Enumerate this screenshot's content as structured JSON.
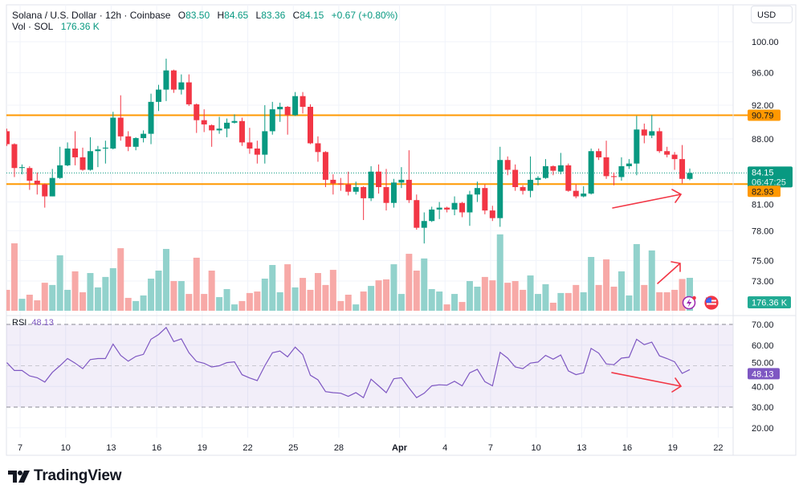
{
  "header": {
    "title": "Solana / U.S. Dollar · 12h · Coinbase",
    "o_label": "O",
    "o_value": "83.50",
    "h_label": "H",
    "h_value": "84.65",
    "l_label": "L",
    "l_value": "83.36",
    "c_label": "C",
    "c_value": "84.15",
    "change": "+0.67 (+0.80%)",
    "vol_label": "Vol · SOL",
    "vol_value": "176.36 K"
  },
  "currency_button": "USD",
  "colors": {
    "up": "#089981",
    "down": "#f23645",
    "volume_up": "#92d2cc",
    "volume_down": "#f7a9a7",
    "level_line": "#ff9800",
    "rsi_line": "#7e57c2",
    "annotation_arrow": "#f23645"
  },
  "price_axis": {
    "scale": "log",
    "ticks": [
      "100.00",
      "96.00",
      "92.00",
      "88.00",
      "81.00",
      "78.00",
      "75.00",
      "73.00"
    ],
    "level_labels": [
      "90.79",
      "82.93"
    ],
    "current_price": "84.15",
    "countdown": "06:47:25",
    "volume_label": "176.36 K"
  },
  "rsi_axis": {
    "ticks": [
      "70.00",
      "60.00",
      "50.00",
      "40.00",
      "30.00",
      "20.00"
    ],
    "current": "48.13"
  },
  "rsi_legend": {
    "label": "RSI",
    "value": "48.13"
  },
  "time_axis": {
    "ticks": [
      "7",
      "10",
      "13",
      "16",
      "19",
      "22",
      "25",
      "28",
      "Apr",
      "4",
      "7",
      "10",
      "13",
      "16",
      "19",
      "22"
    ]
  },
  "icons": [
    "lightning-icon",
    "us-flag-icon",
    "tradingview-logo-icon"
  ],
  "logo": "TradingView",
  "chart_data": [
    {
      "type": "candlestick",
      "title": "Solana / U.S. Dollar · 12h · Coinbase",
      "y_scale": "log",
      "ylim": [
        72,
        101
      ],
      "grid": true,
      "horizontal_levels": [
        90.79,
        82.93
      ],
      "last_price": 84.15,
      "ohlc": [
        [
          88.9,
          89.2,
          87.2,
          87.4
        ],
        [
          87.4,
          87.5,
          83.7,
          84.7
        ],
        [
          84.7,
          85.1,
          84.0,
          84.8
        ],
        [
          84.7,
          84.9,
          82.3,
          83.3
        ],
        [
          83.3,
          84.2,
          81.8,
          82.9
        ],
        [
          82.9,
          83.0,
          80.4,
          81.6
        ],
        [
          81.6,
          84.6,
          81.6,
          83.6
        ],
        [
          83.6,
          87.1,
          83.5,
          85.0
        ],
        [
          85.0,
          87.6,
          84.9,
          86.9
        ],
        [
          86.9,
          88.9,
          85.0,
          85.9
        ],
        [
          85.9,
          87.0,
          84.4,
          84.5
        ],
        [
          84.5,
          88.2,
          84.4,
          86.6
        ],
        [
          86.6,
          87.2,
          84.8,
          86.8
        ],
        [
          86.9,
          87.8,
          85.2,
          87.0
        ],
        [
          86.9,
          91.2,
          86.8,
          90.5
        ],
        [
          90.5,
          93.2,
          87.8,
          88.3
        ],
        [
          88.3,
          88.9,
          86.6,
          87.1
        ],
        [
          87.1,
          88.2,
          86.7,
          88.1
        ],
        [
          88.1,
          89.0,
          87.6,
          88.6
        ],
        [
          88.6,
          93.4,
          87.4,
          92.4
        ],
        [
          92.4,
          94.5,
          91.3,
          93.9
        ],
        [
          93.9,
          97.8,
          92.5,
          96.3
        ],
        [
          96.3,
          96.4,
          93.5,
          93.9
        ],
        [
          93.9,
          95.8,
          93.3,
          94.8
        ],
        [
          94.8,
          95.8,
          91.9,
          92.1
        ],
        [
          92.1,
          92.2,
          88.7,
          90.2
        ],
        [
          90.2,
          91.5,
          88.8,
          89.7
        ],
        [
          89.6,
          89.7,
          87.1,
          89.0
        ],
        [
          89.0,
          90.6,
          88.6,
          89.2
        ],
        [
          89.2,
          90.4,
          88.2,
          89.9
        ],
        [
          89.9,
          90.9,
          89.8,
          90.1
        ],
        [
          90.1,
          90.5,
          87.2,
          87.6
        ],
        [
          87.6,
          89.3,
          86.3,
          86.9
        ],
        [
          86.9,
          87.8,
          85.2,
          86.2
        ],
        [
          86.2,
          92.0,
          85.2,
          88.9
        ],
        [
          88.9,
          92.4,
          88.5,
          91.5
        ],
        [
          91.5,
          92.3,
          90.0,
          91.8
        ],
        [
          91.8,
          91.9,
          88.5,
          90.8
        ],
        [
          90.8,
          93.6,
          90.7,
          93.1
        ],
        [
          93.1,
          93.6,
          91.0,
          91.8
        ],
        [
          91.8,
          92.1,
          87.4,
          87.5
        ],
        [
          87.5,
          88.3,
          85.4,
          86.5
        ],
        [
          86.5,
          86.6,
          82.6,
          83.4
        ],
        [
          83.4,
          84.0,
          81.8,
          83.0
        ],
        [
          83.0,
          83.6,
          82.2,
          82.9
        ],
        [
          82.9,
          84.3,
          81.7,
          82.1
        ],
        [
          82.1,
          83.2,
          81.8,
          82.6
        ],
        [
          82.6,
          82.7,
          79.1,
          81.4
        ],
        [
          81.4,
          84.9,
          81.1,
          84.3
        ],
        [
          84.3,
          85.1,
          81.9,
          82.6
        ],
        [
          82.6,
          84.6,
          80.1,
          80.9
        ],
        [
          80.9,
          83.5,
          80.4,
          83.1
        ],
        [
          83.1,
          84.8,
          82.5,
          83.4
        ],
        [
          83.4,
          86.7,
          80.9,
          81.2
        ],
        [
          81.2,
          81.8,
          78.1,
          78.3
        ],
        [
          78.3,
          79.9,
          76.7,
          79.0
        ],
        [
          79.0,
          80.5,
          78.9,
          80.2
        ],
        [
          80.2,
          81.0,
          79.2,
          80.4
        ],
        [
          80.4,
          80.5,
          79.9,
          80.2
        ],
        [
          80.2,
          81.6,
          79.6,
          80.9
        ],
        [
          80.9,
          81.0,
          79.4,
          79.9
        ],
        [
          79.9,
          82.2,
          78.5,
          81.8
        ],
        [
          81.8,
          83.2,
          81.0,
          82.5
        ],
        [
          82.5,
          82.9,
          79.7,
          80.1
        ],
        [
          80.1,
          80.6,
          79.0,
          79.3
        ],
        [
          79.3,
          87.1,
          78.4,
          85.6
        ],
        [
          85.6,
          86.0,
          83.9,
          84.5
        ],
        [
          84.5,
          85.1,
          82.2,
          82.6
        ],
        [
          82.6,
          82.8,
          81.8,
          82.2
        ],
        [
          82.2,
          86.0,
          81.5,
          83.4
        ],
        [
          83.4,
          83.8,
          82.8,
          83.6
        ],
        [
          83.6,
          85.7,
          83.5,
          84.9
        ],
        [
          84.9,
          85.0,
          83.9,
          84.4
        ],
        [
          84.3,
          86.4,
          84.0,
          85.0
        ],
        [
          85.0,
          85.2,
          82.1,
          82.2
        ],
        [
          82.2,
          82.9,
          81.4,
          81.6
        ],
        [
          81.6,
          82.7,
          81.5,
          81.9
        ],
        [
          81.9,
          86.9,
          81.8,
          86.6
        ],
        [
          86.6,
          86.9,
          85.6,
          85.9
        ],
        [
          85.9,
          87.8,
          83.5,
          83.8
        ],
        [
          83.8,
          84.2,
          82.8,
          83.7
        ],
        [
          83.7,
          85.9,
          83.3,
          84.9
        ],
        [
          84.9,
          85.7,
          84.6,
          85.2
        ],
        [
          85.2,
          90.7,
          83.9,
          89.1
        ],
        [
          89.1,
          89.8,
          87.5,
          88.4
        ],
        [
          88.4,
          90.8,
          88.1,
          88.9
        ],
        [
          88.9,
          89.3,
          86.4,
          86.6
        ],
        [
          86.6,
          87.1,
          85.9,
          86.2
        ],
        [
          86.2,
          86.5,
          84.5,
          85.7
        ],
        [
          85.7,
          87.3,
          83.0,
          83.5
        ],
        [
          83.5,
          84.65,
          83.36,
          84.15
        ]
      ]
    },
    {
      "type": "bar",
      "ylabel": "Vol · SOL",
      "unit": "K",
      "values": [
        112,
        361,
        64,
        86,
        56,
        150,
        138,
        297,
        112,
        211,
        99,
        202,
        125,
        181,
        228,
        335,
        69,
        52,
        82,
        172,
        215,
        331,
        159,
        159,
        90,
        284,
        90,
        215,
        73,
        116,
        34,
        52,
        95,
        103,
        172,
        245,
        99,
        249,
        125,
        176,
        112,
        202,
        138,
        219,
        52,
        86,
        34,
        103,
        133,
        163,
        168,
        249,
        90,
        305,
        215,
        280,
        116,
        103,
        34,
        90,
        47,
        159,
        129,
        181,
        163,
        409,
        150,
        159,
        112,
        189,
        90,
        142,
        43,
        95,
        95,
        138,
        99,
        288,
        138,
        275,
        129,
        211,
        82,
        357,
        138,
        323,
        99,
        99,
        112,
        170,
        176.36
      ]
    },
    {
      "type": "line",
      "title": "RSI",
      "ylim": [
        15,
        75
      ],
      "band": [
        30,
        70
      ],
      "midline": 50,
      "values": [
        51.5,
        47.7,
        47.7,
        45.1,
        44.2,
        42.1,
        46.8,
        50.0,
        53.5,
        51.3,
        48.6,
        53.0,
        53.5,
        53.5,
        60.5,
        55.0,
        52.2,
        54.5,
        55.5,
        62.8,
        65.1,
        68.5,
        61.7,
        63.0,
        56.3,
        52.1,
        51.2,
        49.4,
        50.0,
        51.5,
        51.9,
        45.7,
        44.1,
        42.8,
        50.0,
        56.3,
        57.1,
        54.3,
        59.0,
        55.4,
        45.4,
        43.2,
        37.5,
        37.0,
        36.7,
        35.2,
        37.0,
        34.6,
        43.5,
        40.3,
        37.0,
        43.7,
        44.2,
        39.3,
        34.6,
        36.7,
        40.3,
        40.8,
        40.6,
        42.5,
        40.3,
        46.6,
        48.3,
        42.3,
        40.3,
        56.5,
        53.7,
        49.4,
        48.6,
        51.3,
        51.8,
        55.0,
        53.2,
        55.2,
        47.5,
        45.7,
        46.6,
        58.4,
        56.1,
        50.9,
        50.5,
        53.7,
        54.1,
        62.8,
        60.2,
        61.4,
        54.8,
        53.5,
        51.9,
        46.3,
        48.13
      ]
    }
  ]
}
